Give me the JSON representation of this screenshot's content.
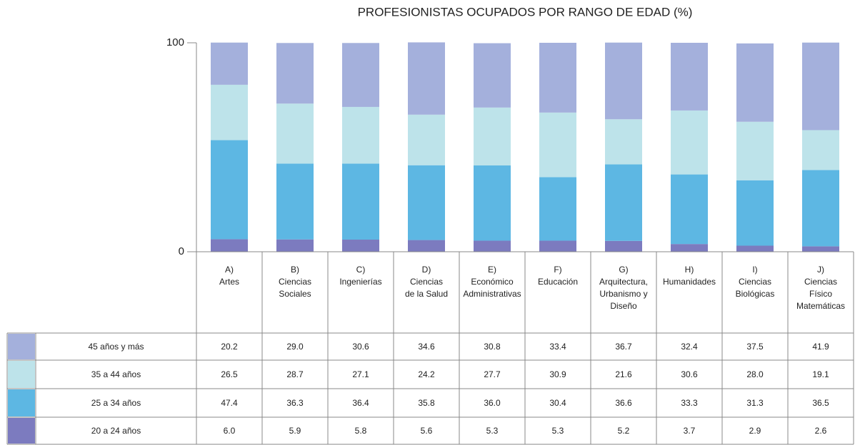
{
  "chart_data": {
    "type": "stacked_bar",
    "title": "PROFESIONISTAS OCUPADOS POR RANGO DE EDAD (%)",
    "categories": [
      "A)\nArtes",
      "B)\nCiencias\nSociales",
      "C)\nIngenierías",
      "D)\nCiencias\nde la Salud",
      "E)\nEconómico\nAdministrativas",
      "F)\nEducación",
      "G)\nArquitectura,\nUrbanismo y\nDiseño",
      "H)\nHumanidades",
      "I)\nCiencias\nBiológicas",
      "J)\nCiencias\nFísico\nMatemáticas"
    ],
    "series": [
      {
        "name": "45 años y más",
        "color": "#a4b0dc",
        "values": [
          20.2,
          29.0,
          30.6,
          34.6,
          30.8,
          33.4,
          36.7,
          32.4,
          37.5,
          41.9
        ],
        "value_labels": [
          "20.2",
          "29.0",
          "30.6",
          "34.6",
          "30.8",
          "33.4",
          "36.7",
          "32.4",
          "37.5",
          "41.9"
        ]
      },
      {
        "name": "35 a 44 años",
        "color": "#bde3ea",
        "values": [
          26.5,
          28.7,
          27.1,
          24.2,
          27.7,
          30.9,
          21.6,
          30.6,
          28.0,
          19.1
        ],
        "value_labels": [
          "26.5",
          "28.7",
          "27.1",
          "24.2",
          "27.7",
          "30.9",
          "21.6",
          "30.6",
          "28.0",
          "19.1"
        ]
      },
      {
        "name": "25 a 34 años",
        "color": "#5db7e3",
        "values": [
          47.4,
          36.3,
          36.4,
          35.8,
          36.0,
          30.4,
          36.6,
          33.3,
          31.3,
          36.5
        ],
        "value_labels": [
          "47.4",
          "36.3",
          "36.4",
          "35.8",
          "36.0",
          "30.4",
          "36.6",
          "33.3",
          "31.3",
          "36.5"
        ]
      },
      {
        "name": "20 a 24 años",
        "color": "#7c7bbf",
        "values": [
          6.0,
          5.9,
          5.8,
          5.6,
          5.3,
          5.3,
          5.2,
          3.7,
          2.9,
          2.6
        ],
        "value_labels": [
          "6.0",
          "5.9",
          "5.8",
          "5.6",
          "5.3",
          "5.3",
          "5.2",
          "3.7",
          "2.9",
          "2.6"
        ]
      }
    ],
    "ylim": [
      0,
      100
    ],
    "yticks": [
      0,
      100
    ]
  }
}
